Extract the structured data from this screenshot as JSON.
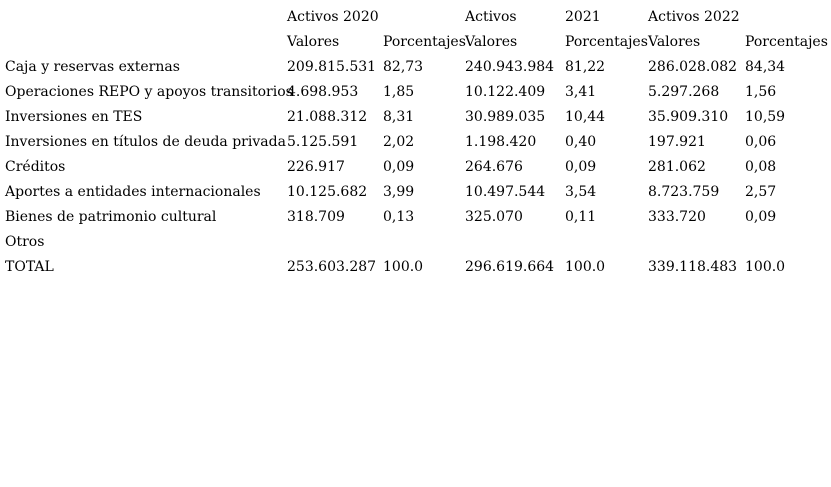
{
  "chart_data": {
    "type": "table",
    "title": "",
    "header_row1": {
      "label": "",
      "y2020": "Activos 2020",
      "y2020b": "",
      "y2021a": "Activos",
      "y2021b": "2021",
      "y2022": "Activos 2022",
      "y2022b": ""
    },
    "subheaders": {
      "valores": "Valores",
      "porcentajes": "Porcentajes"
    },
    "rows": [
      {
        "label": "Caja y reservas externas",
        "v2020": "209.815.531",
        "p2020": "82,73",
        "v2021": "240.943.984",
        "p2021": "81,22",
        "v2022": "286.028.082",
        "p2022": "84,34"
      },
      {
        "label": "Operaciones REPO y apoyos transitorios",
        "v2020": "4.698.953",
        "p2020": "1,85",
        "v2021": "10.122.409",
        "p2021": "3,41",
        "v2022": "5.297.268",
        "p2022": "1,56"
      },
      {
        "label": "Inversiones en TES",
        "v2020": "21.088.312",
        "p2020": "8,31",
        "v2021": "30.989.035",
        "p2021": "10,44",
        "v2022": "35.909.310",
        "p2022": "10,59"
      },
      {
        "label": "Inversiones en títulos de deuda privada",
        "v2020": "5.125.591",
        "p2020": "2,02",
        "v2021": "1.198.420",
        "p2021": "0,40",
        "v2022": "197.921",
        "p2022": "0,06"
      },
      {
        "label": "Créditos",
        "v2020": "226.917",
        "p2020": "0,09",
        "v2021": "264.676",
        "p2021": "0,09",
        "v2022": "281.062",
        "p2022": "0,08"
      },
      {
        "label": "Aportes a entidades internacionales",
        "v2020": "10.125.682",
        "p2020": "3,99",
        "v2021": "10.497.544",
        "p2021": "3,54",
        "v2022": "8.723.759",
        "p2022": "2,57"
      },
      {
        "label": "Bienes de patrimonio cultural",
        "v2020": "318.709",
        "p2020": "0,13",
        "v2021": "325.070",
        "p2021": "0,11",
        "v2022": "333.720",
        "p2022": "0,09"
      },
      {
        "label": "Otros",
        "v2020": "",
        "p2020": "",
        "v2021": "",
        "p2021": "",
        "v2022": "",
        "p2022": ""
      },
      {
        "label": "TOTAL",
        "v2020": "253.603.287",
        "p2020": "100.0",
        "v2021": "296.619.664",
        "p2021": "100.0",
        "v2022": "339.118.483",
        "p2022": "100.0"
      }
    ]
  }
}
